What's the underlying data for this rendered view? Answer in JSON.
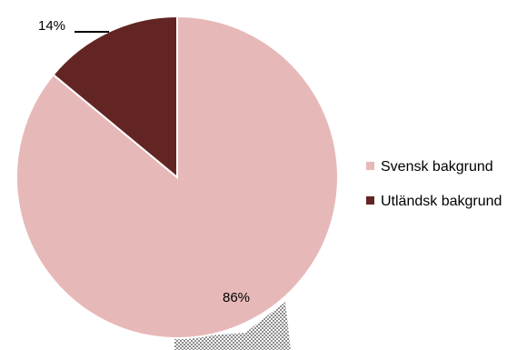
{
  "chart_data": {
    "type": "pie",
    "categories": [
      "Svensk bakgrund",
      "Utländsk bakgrund"
    ],
    "values": [
      86,
      14
    ],
    "data_labels": [
      "86%",
      "14%"
    ],
    "colors": [
      "#e6b9b8",
      "#632523"
    ],
    "legend": {
      "position": "right",
      "entries": [
        "Svensk bakgrund",
        "Utländsk bakgrund"
      ]
    },
    "title": ""
  }
}
